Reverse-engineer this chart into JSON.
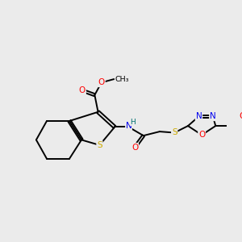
{
  "background_color": "#ebebeb",
  "bond_color": "#000000",
  "atom_colors": {
    "S": "#ccaa00",
    "O": "#ff0000",
    "N": "#0000ee",
    "H": "#007070",
    "C": "#000000"
  },
  "figsize": [
    3.0,
    3.0
  ],
  "dpi": 100,
  "xlim": [
    0,
    10
  ],
  "ylim": [
    0,
    10
  ]
}
